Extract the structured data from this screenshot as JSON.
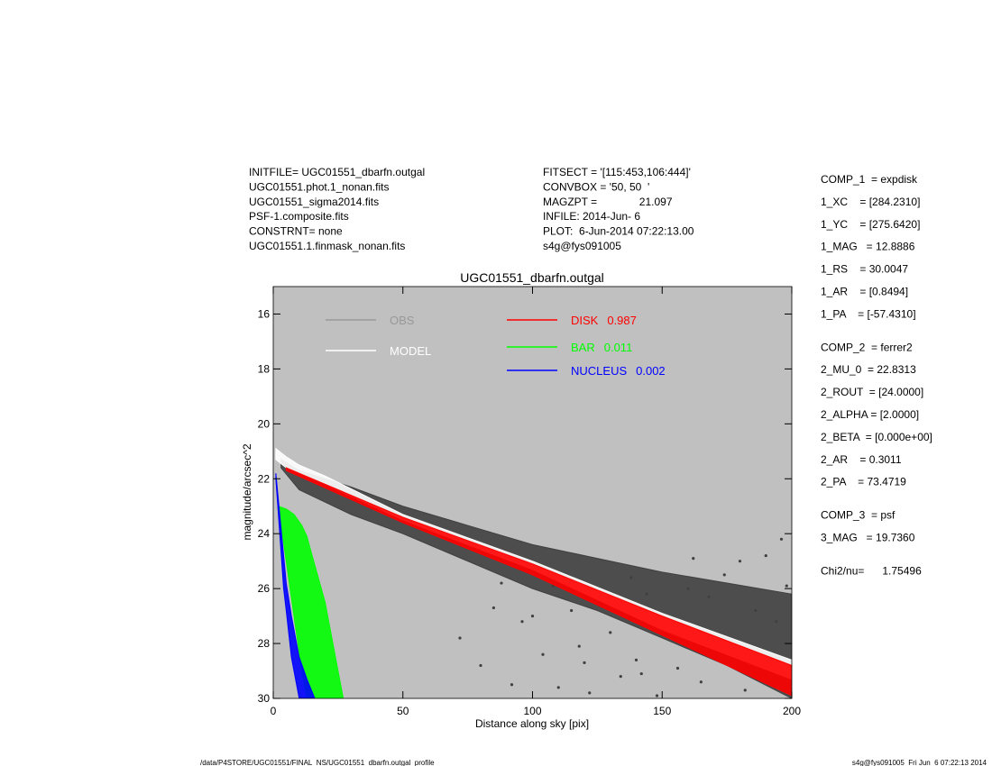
{
  "chart_data": {
    "type": "profile",
    "title": "UGC01551_dbarfn.outgal",
    "xlabel": "Distance along sky [pix]",
    "ylabel": "magnitude/arcsec^2",
    "xlim": [
      0,
      200
    ],
    "ylim": [
      30,
      15
    ],
    "xticks": [
      0,
      50,
      100,
      150,
      200
    ],
    "yticks": [
      16,
      18,
      20,
      22,
      24,
      26,
      28,
      30
    ],
    "background": "#c0c0c0",
    "header_left": [
      "INITFILE= UGC01551_dbarfn.outgal",
      "UGC01551.phot.1_nonan.fits",
      "UGC01551_sigma2014.fits",
      "PSF-1.composite.fits",
      "CONSTRNT= none",
      "UGC01551.1.finmask_nonan.fits"
    ],
    "header_mid": [
      "FITSECT = '[115:453,106:444]'",
      "CONVBOX = '50, 50  '",
      "MAGZPT =              21.097",
      "INFILE: 2014-Jun- 6",
      "PLOT:  6-Jun-2014 07:22:13.00",
      "s4g@fys091005"
    ],
    "params": [
      [
        "COMP_1  = expdisk",
        "1_XC    = [284.2310]",
        "1_YC    = [275.6420]",
        "1_MAG   = 12.8886",
        "1_RS    = 30.0047",
        "1_AR    = [0.8494]",
        "1_PA    = [-57.4310]"
      ],
      [
        "COMP_2  = ferrer2",
        "2_MU_0  = 22.8313",
        "2_ROUT  = [24.0000]",
        "2_ALPHA = [2.0000]",
        "2_BETA  = [0.000e+00]",
        "2_AR    = 0.3011",
        "2_PA    = 73.4719"
      ],
      [
        "COMP_3  = psf",
        "3_MAG   = 19.7360"
      ],
      [
        "Chi2/nu=      1.75496"
      ]
    ],
    "footer_left": "/data/P4STORE/UGC01551/FINAL_NS/UGC01551_dbarfn.outgal_profile",
    "footer_right": "s4g@fys091005  Fri Jun  6 07:22:13 2014",
    "series": [
      {
        "name": "OBS",
        "color": "#404040",
        "legend_color": "#999999",
        "x": [
          3,
          10,
          30,
          50,
          75,
          100,
          125,
          150,
          175,
          200
        ],
        "values": [
          21.3,
          21.7,
          22.3,
          23.0,
          23.7,
          24.4,
          24.9,
          25.4,
          25.8,
          26.2
        ],
        "lower": [
          21.6,
          22.4,
          23.3,
          24.0,
          25.0,
          26.0,
          26.8,
          27.8,
          28.8,
          30.0
        ],
        "points_x": [
          72,
          80,
          85,
          92,
          96,
          104,
          110,
          115,
          118,
          122,
          126,
          130,
          134,
          140,
          144,
          148,
          152,
          156,
          160,
          165,
          170,
          174,
          178,
          182,
          186,
          190,
          194,
          198,
          88,
          100,
          120,
          138,
          162,
          180,
          196,
          108,
          142,
          168
        ],
        "points_y": [
          27.8,
          28.8,
          26.7,
          29.5,
          27.2,
          28.4,
          29.6,
          26.8,
          28.1,
          29.8,
          26.5,
          27.6,
          29.2,
          28.6,
          26.2,
          29.9,
          27.4,
          28.9,
          26.0,
          29.4,
          27.9,
          25.5,
          28.3,
          29.7,
          26.8,
          24.8,
          27.2,
          25.9,
          25.8,
          27.0,
          28.7,
          25.6,
          24.9,
          25.0,
          24.2,
          25.9,
          29.1,
          26.3
        ]
      },
      {
        "name": "MODEL",
        "color": "#ffffff",
        "legend_color": "#ffffff",
        "x": [
          1,
          5,
          10,
          20,
          50,
          100,
          150,
          200
        ],
        "values": [
          20.9,
          21.2,
          21.5,
          21.9,
          23.3,
          25.0,
          26.9,
          28.6
        ],
        "lower": [
          21.3,
          21.6,
          21.8,
          22.2,
          23.5,
          25.3,
          27.5,
          29.3
        ]
      },
      {
        "name": "DISK",
        "fraction": 0.987,
        "color": "#ff0000",
        "x": [
          5,
          50,
          100,
          150,
          200
        ],
        "values": [
          21.6,
          23.4,
          25.1,
          27.0,
          28.8
        ],
        "lower": [
          21.7,
          23.6,
          25.5,
          27.7,
          29.9
        ]
      },
      {
        "name": "BAR",
        "fraction": 0.011,
        "color": "#00ff00",
        "x": [
          2,
          5,
          8,
          11,
          13,
          15,
          20,
          25,
          27
        ],
        "values": [
          23.0,
          23.1,
          23.3,
          23.7,
          24.1,
          24.8,
          26.5,
          29.0,
          30
        ],
        "lower": [
          23.0,
          25.0,
          27.0,
          29.0,
          30,
          30,
          30,
          30,
          30
        ]
      },
      {
        "name": "NUCLEUS",
        "fraction": 0.002,
        "color": "#0000ff",
        "x": [
          1,
          4,
          5,
          7,
          10,
          13,
          16
        ],
        "values": [
          21.8,
          24.8,
          25.8,
          27.0,
          28.5,
          29.3,
          30
        ],
        "lower": [
          22.0,
          26.0,
          26.8,
          28.5,
          30,
          30,
          30
        ]
      }
    ]
  }
}
